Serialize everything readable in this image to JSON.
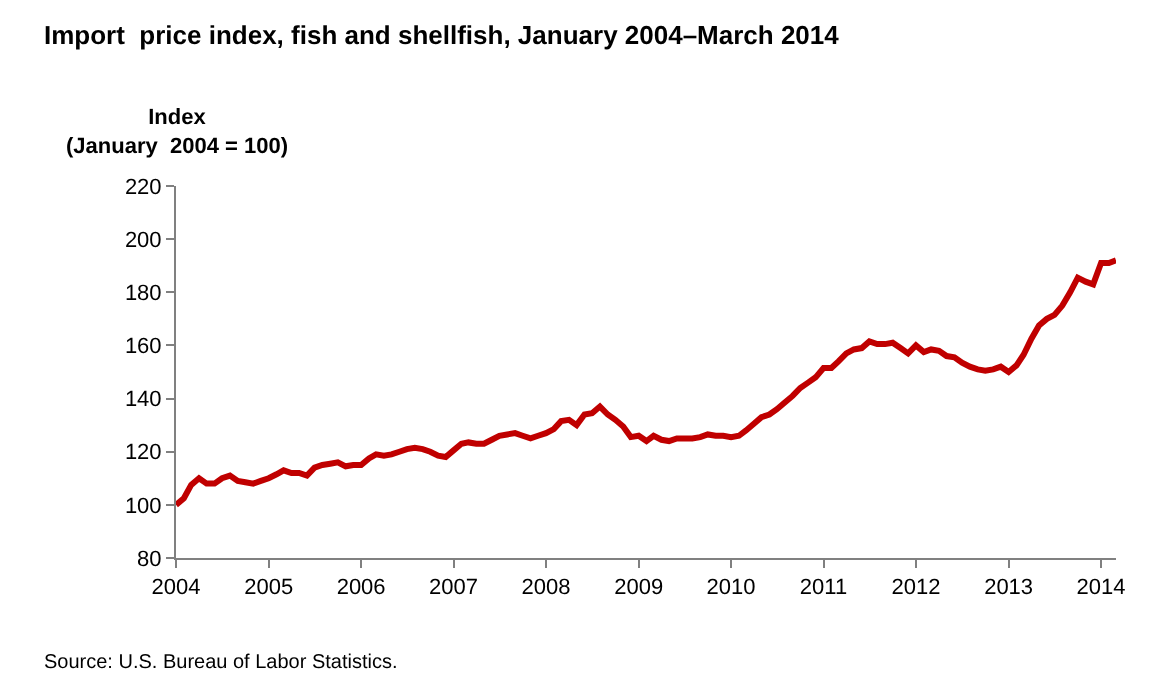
{
  "chart_data": {
    "type": "line",
    "title": "Import  price index, fish and shellfish, January 2004–March 2014",
    "ylabel": "Index\n(January  2004 = 100)",
    "annotations": [
      "Source: U.S. Bureau of Labor Statistics."
    ],
    "x": [
      "2004-01",
      "2004-02",
      "2004-03",
      "2004-04",
      "2004-05",
      "2004-06",
      "2004-07",
      "2004-08",
      "2004-09",
      "2004-10",
      "2004-11",
      "2004-12",
      "2005-01",
      "2005-02",
      "2005-03",
      "2005-04",
      "2005-05",
      "2005-06",
      "2005-07",
      "2005-08",
      "2005-09",
      "2005-10",
      "2005-11",
      "2005-12",
      "2006-01",
      "2006-02",
      "2006-03",
      "2006-04",
      "2006-05",
      "2006-06",
      "2006-07",
      "2006-08",
      "2006-09",
      "2006-10",
      "2006-11",
      "2006-12",
      "2007-01",
      "2007-02",
      "2007-03",
      "2007-04",
      "2007-05",
      "2007-06",
      "2007-07",
      "2007-08",
      "2007-09",
      "2007-10",
      "2007-11",
      "2007-12",
      "2008-01",
      "2008-02",
      "2008-03",
      "2008-04",
      "2008-05",
      "2008-06",
      "2008-07",
      "2008-08",
      "2008-09",
      "2008-10",
      "2008-11",
      "2008-12",
      "2009-01",
      "2009-02",
      "2009-03",
      "2009-04",
      "2009-05",
      "2009-06",
      "2009-07",
      "2009-08",
      "2009-09",
      "2009-10",
      "2009-11",
      "2009-12",
      "2010-01",
      "2010-02",
      "2010-03",
      "2010-04",
      "2010-05",
      "2010-06",
      "2010-07",
      "2010-08",
      "2010-09",
      "2010-10",
      "2010-11",
      "2010-12",
      "2011-01",
      "2011-02",
      "2011-03",
      "2011-04",
      "2011-05",
      "2011-06",
      "2011-07",
      "2011-08",
      "2011-09",
      "2011-10",
      "2011-11",
      "2011-12",
      "2012-01",
      "2012-02",
      "2012-03",
      "2012-04",
      "2012-05",
      "2012-06",
      "2012-07",
      "2012-08",
      "2012-09",
      "2012-10",
      "2012-11",
      "2012-12",
      "2013-01",
      "2013-02",
      "2013-03",
      "2013-04",
      "2013-05",
      "2013-06",
      "2013-07",
      "2013-08",
      "2013-09",
      "2013-10",
      "2013-11",
      "2013-12",
      "2014-01",
      "2014-02",
      "2014-03"
    ],
    "series": [
      {
        "color": "#c00000",
        "values": [
          100,
          102.5,
          107.5,
          110,
          108,
          108,
          110,
          111,
          109,
          108.5,
          108,
          109,
          110,
          111.5,
          113,
          112,
          112,
          111,
          114,
          115,
          115.5,
          116,
          114.5,
          115,
          115,
          117.5,
          119,
          118.5,
          119,
          120,
          121,
          121.5,
          121,
          120,
          118.5,
          118,
          120.5,
          123,
          123.5,
          123,
          123,
          124.5,
          126,
          126.5,
          127,
          126,
          125,
          126,
          127,
          128.5,
          131.5,
          132,
          130,
          134,
          134.5,
          137,
          134,
          132,
          129.5,
          125.5,
          126,
          124,
          126,
          124.5,
          124,
          125,
          125,
          125,
          125.5,
          126.5,
          126,
          126,
          125.5,
          126,
          128,
          130.5,
          133,
          134,
          136,
          138.5,
          141,
          144,
          146,
          148,
          151.5,
          151.5,
          154,
          157,
          158.5,
          159,
          161.5,
          160.5,
          160.5,
          161,
          159,
          157,
          160,
          157.5,
          158.5,
          158,
          156,
          155.5,
          153.5,
          152,
          151,
          150.5,
          151,
          152,
          150,
          152.5,
          156.5,
          162.5,
          167.5,
          170,
          171.5,
          175,
          180,
          185.5,
          184,
          183,
          191,
          191,
          192
        ]
      }
    ],
    "xlim": [
      "2004-01",
      "2014-03"
    ],
    "xticks": [
      {
        "value": "2004-01",
        "label": "2004"
      },
      {
        "value": "2005-01",
        "label": "2005"
      },
      {
        "value": "2006-01",
        "label": "2006"
      },
      {
        "value": "2007-01",
        "label": "2007"
      },
      {
        "value": "2008-01",
        "label": "2008"
      },
      {
        "value": "2009-01",
        "label": "2009"
      },
      {
        "value": "2010-01",
        "label": "2010"
      },
      {
        "value": "2011-01",
        "label": "2011"
      },
      {
        "value": "2012-01",
        "label": "2012"
      },
      {
        "value": "2013-01",
        "label": "2013"
      },
      {
        "value": "2014-01",
        "label": "2014"
      }
    ],
    "ylim": [
      80,
      220
    ],
    "yticks": [
      80,
      100,
      120,
      140,
      160,
      180,
      200,
      220
    ],
    "marker": "none",
    "line_style": "solid"
  }
}
